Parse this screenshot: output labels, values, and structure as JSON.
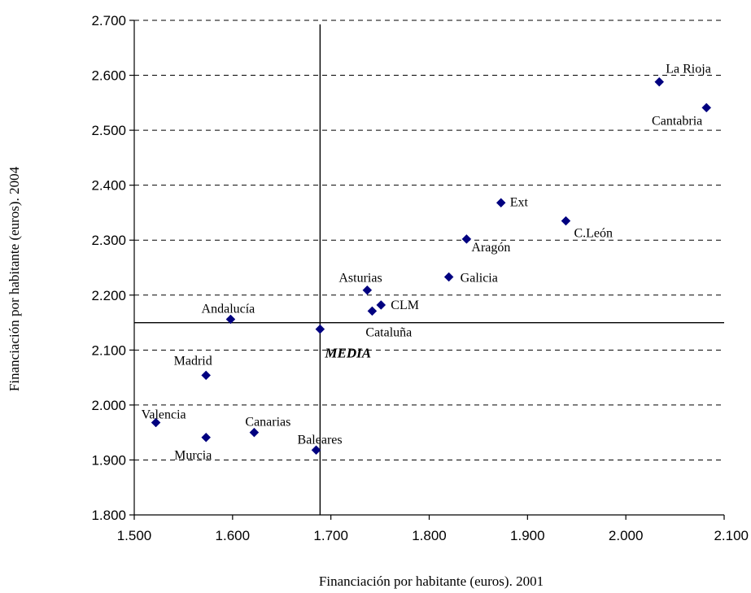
{
  "chart_data": {
    "type": "scatter",
    "title": "",
    "xlabel": "Financiación por habitante (euros). 2001",
    "ylabel": "Financiación por habitante (euros). 2004",
    "xlim": [
      1500,
      2100
    ],
    "ylim": [
      1800,
      2700
    ],
    "x_ticks": [
      1500,
      1600,
      1700,
      1800,
      1900,
      2000,
      2100
    ],
    "y_ticks": [
      1800,
      1900,
      2000,
      2100,
      2200,
      2300,
      2400,
      2500,
      2600,
      2700
    ],
    "x_tick_labels": [
      "1.500",
      "1.600",
      "1.700",
      "1.800",
      "1.900",
      "2.000",
      "2.100"
    ],
    "y_tick_labels": [
      "1.800",
      "1.900",
      "2.000",
      "2.100",
      "2.200",
      "2.300",
      "2.400",
      "2.500",
      "2.600",
      "2.700"
    ],
    "grid": "horizontal dashed",
    "marker_color": "#000080",
    "points": [
      {
        "label": "La Rioja",
        "x": 2034,
        "y": 2588
      },
      {
        "label": "Cantabria",
        "x": 2082,
        "y": 2541
      },
      {
        "label": "Ext",
        "x": 1873,
        "y": 2368
      },
      {
        "label": "C.León",
        "x": 1939,
        "y": 2335
      },
      {
        "label": "Aragón",
        "x": 1838,
        "y": 2302
      },
      {
        "label": "Galicia",
        "x": 1820,
        "y": 2233
      },
      {
        "label": "Asturias",
        "x": 1737,
        "y": 2209
      },
      {
        "label": "CLM",
        "x": 1751,
        "y": 2182
      },
      {
        "label": "Cataluña",
        "x": 1742,
        "y": 2171
      },
      {
        "label": "Andalucía",
        "x": 1598,
        "y": 2156
      },
      {
        "label": "Madrid",
        "x": 1573,
        "y": 2054
      },
      {
        "label": "Valencia",
        "x": 1522,
        "y": 1968
      },
      {
        "label": "Murcia",
        "x": 1573,
        "y": 1941
      },
      {
        "label": "Canarias",
        "x": 1622,
        "y": 1950
      },
      {
        "label": "Baleares",
        "x": 1685,
        "y": 1918
      }
    ],
    "mean": {
      "label": "MEDIA",
      "x": 1689,
      "y": 2138
    }
  }
}
